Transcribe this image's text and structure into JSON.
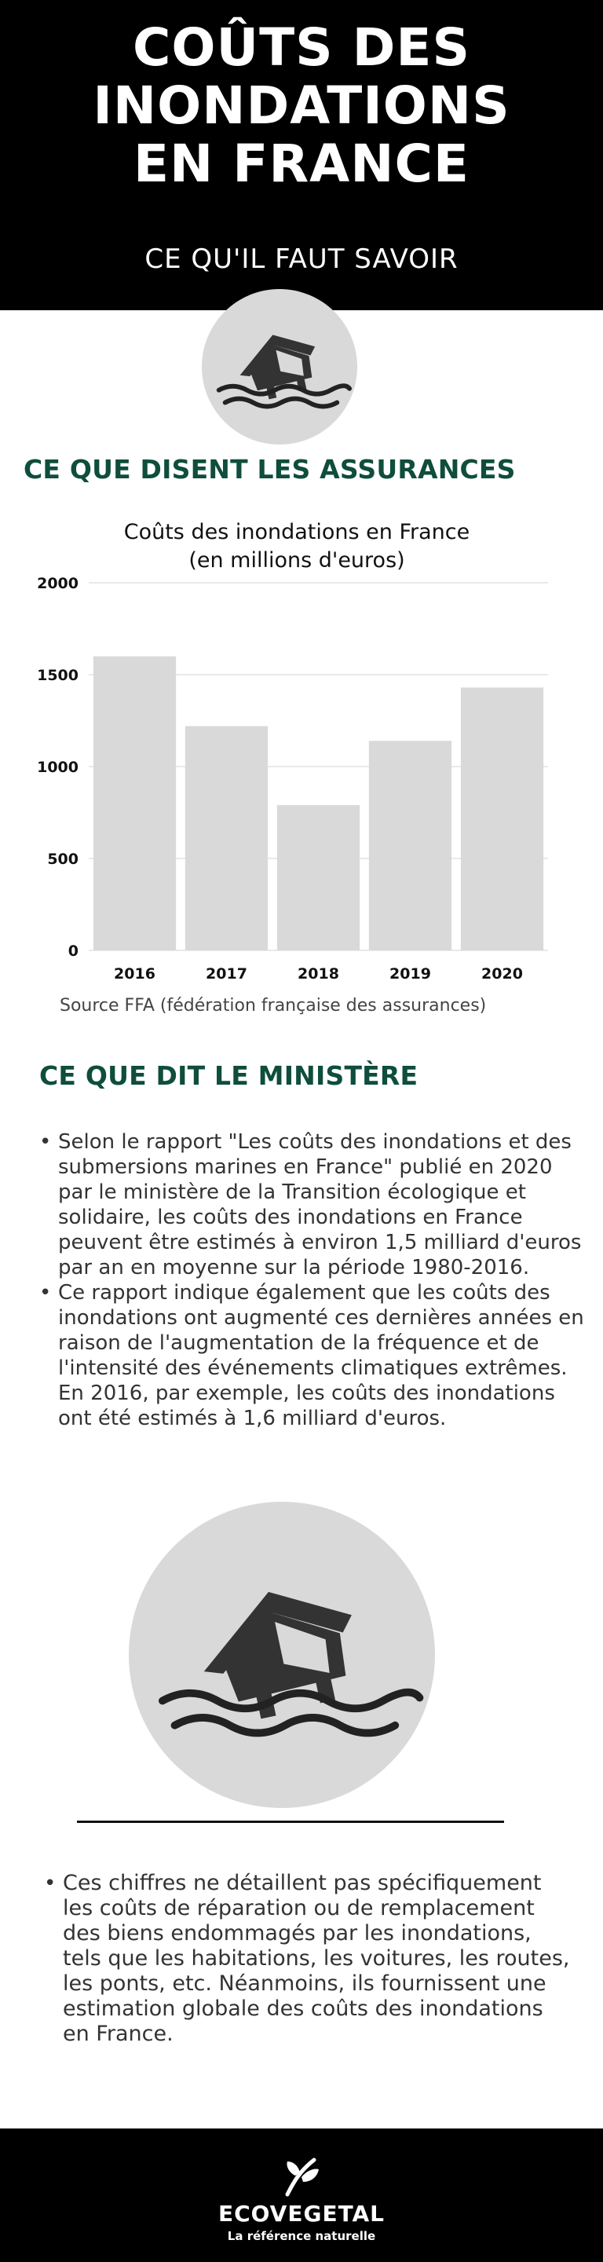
{
  "header": {
    "title_lines": [
      "COÛTS DES",
      "INONDATIONS",
      "EN FRANCE"
    ],
    "subtitle": "CE QU'IL FAUT SAVOIR"
  },
  "icons": {
    "flood_house": "flood-house-icon",
    "logo": "ecovegetal-logo-icon"
  },
  "section_insurance": {
    "title": "CE QUE DISENT LES ASSURANCES"
  },
  "chart_data": {
    "type": "bar",
    "title_lines": [
      "Coûts des inondations en France",
      "(en millions d'euros)"
    ],
    "categories": [
      "2016",
      "2017",
      "2018",
      "2019",
      "2020"
    ],
    "values": [
      1600,
      1220,
      790,
      1140,
      1430
    ],
    "ylim": [
      0,
      2000
    ],
    "yticks": [
      0,
      500,
      1000,
      1500,
      2000
    ],
    "xlabel": "",
    "ylabel": "",
    "grid": true,
    "bar_color": "#d9d9d9"
  },
  "source": "Source FFA (fédération française des assurances)",
  "section_ministry": {
    "title": "CE QUE DIT LE MINISTÈRE"
  },
  "ministry_bullets": [
    "Selon le rapport \"Les coûts des inondations et des submersions marines en France\" publié en 2020 par le ministère de la Transition écologique et solidaire, les coûts des inondations en France peuvent être estimés à environ 1,5 milliard d'euros par an en moyenne sur la période 1980-2016.",
    "Ce rapport indique également que les coûts des inondations ont augmenté ces dernières années en raison de l'augmentation de la fréquence et de l'intensité des événements climatiques extrêmes. En 2016, par exemple, les coûts des inondations ont été estimés à 1,6 milliard d'euros."
  ],
  "final_bullets": [
    "Ces chiffres ne détaillent pas spécifiquement les coûts de réparation ou de remplacement des biens endommagés par les inondations, tels que les habitations, les voitures, les routes, les ponts, etc. Néanmoins, ils fournissent une estimation globale des coûts des inondations en France."
  ],
  "footer": {
    "brand": "ECOVEGETAL",
    "tagline": "La référence naturelle"
  },
  "colors": {
    "header_bg": "#000000",
    "section_title": "#0f4d3c",
    "circle": "#d9d9d9"
  }
}
